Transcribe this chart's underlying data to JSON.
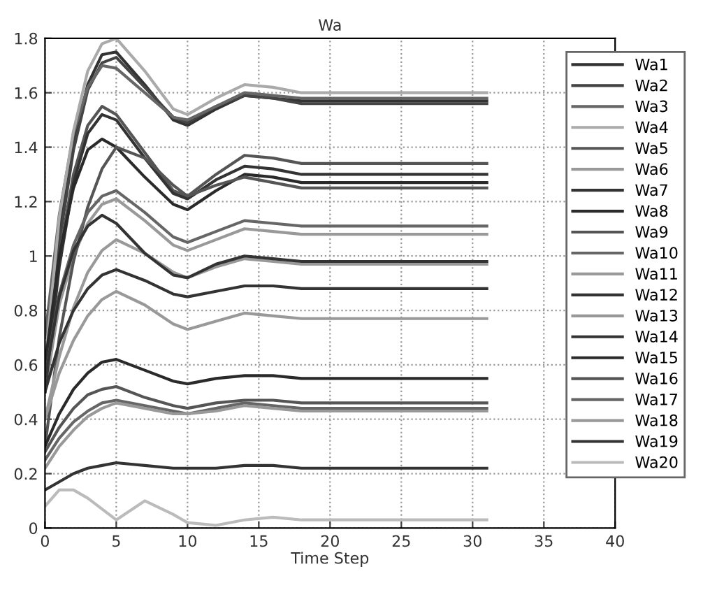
{
  "chart_data": {
    "type": "line",
    "title": "Wa",
    "xlabel": "Time Step",
    "x": [
      0,
      1,
      2,
      3,
      4,
      5,
      7,
      9,
      10,
      12,
      14,
      16,
      18,
      20,
      25,
      31
    ],
    "xlim": [
      0,
      40
    ],
    "xticks": [
      0,
      5,
      10,
      15,
      20,
      25,
      30,
      35,
      40
    ],
    "ylim": [
      0,
      1.8
    ],
    "yticks": [
      0,
      {
        "value": 0.2,
        "label": "0.2"
      },
      {
        "value": 0.4,
        "label": "0.4"
      },
      {
        "value": 0.6,
        "label": "0.6"
      },
      {
        "value": 0.8,
        "label": "0.8"
      },
      1,
      {
        "value": 1.2,
        "label": "1.2"
      },
      {
        "value": 1.4,
        "label": "1.4"
      },
      {
        "value": 1.6,
        "label": "1.6"
      },
      {
        "value": 1.8,
        "label": "1.8"
      }
    ],
    "grid": true,
    "legend": "right",
    "line_style": "solid",
    "marker": "none",
    "series": [
      {
        "name": "Wa1",
        "color": "#333333",
        "values": [
          0.55,
          1.09,
          1.41,
          1.63,
          1.74,
          1.75,
          1.63,
          1.5,
          1.48,
          1.54,
          1.59,
          1.58,
          1.57,
          1.57,
          1.57,
          1.57
        ]
      },
      {
        "name": "Wa2",
        "color": "#444444",
        "values": [
          0.5,
          1.05,
          1.39,
          1.61,
          1.71,
          1.73,
          1.62,
          1.51,
          1.49,
          1.55,
          1.59,
          1.58,
          1.56,
          1.56,
          1.56,
          1.56
        ]
      },
      {
        "name": "Wa3",
        "color": "#666666",
        "values": [
          0.7,
          1.15,
          1.45,
          1.62,
          1.7,
          1.69,
          1.6,
          1.51,
          1.5,
          1.55,
          1.6,
          1.59,
          1.58,
          1.58,
          1.58,
          1.58
        ]
      },
      {
        "name": "Wa4",
        "color": "#aaaaaa",
        "values": [
          0.6,
          1.14,
          1.46,
          1.68,
          1.78,
          1.8,
          1.68,
          1.54,
          1.52,
          1.58,
          1.63,
          1.62,
          1.6,
          1.6,
          1.6,
          1.6
        ]
      },
      {
        "name": "Wa5",
        "color": "#555555",
        "values": [
          0.55,
          1.0,
          1.3,
          1.48,
          1.55,
          1.52,
          1.38,
          1.24,
          1.22,
          1.3,
          1.37,
          1.36,
          1.34,
          1.34,
          1.34,
          1.34
        ]
      },
      {
        "name": "Wa6",
        "color": "#999999",
        "values": [
          0.5,
          0.82,
          1.0,
          1.12,
          1.19,
          1.21,
          1.13,
          1.04,
          1.02,
          1.06,
          1.1,
          1.09,
          1.08,
          1.08,
          1.08,
          1.08
        ]
      },
      {
        "name": "Wa7",
        "color": "#333333",
        "values": [
          0.5,
          0.96,
          1.27,
          1.45,
          1.52,
          1.5,
          1.36,
          1.23,
          1.21,
          1.28,
          1.33,
          1.32,
          1.3,
          1.3,
          1.3,
          1.3
        ]
      },
      {
        "name": "Wa8",
        "color": "#2a2a2a",
        "values": [
          0.6,
          1.0,
          1.25,
          1.39,
          1.43,
          1.4,
          1.29,
          1.19,
          1.17,
          1.24,
          1.3,
          1.29,
          1.27,
          1.27,
          1.27,
          1.27
        ]
      },
      {
        "name": "Wa9",
        "color": "#555555",
        "values": [
          0.3,
          0.7,
          0.98,
          1.18,
          1.32,
          1.4,
          1.36,
          1.26,
          1.22,
          1.26,
          1.29,
          1.27,
          1.25,
          1.25,
          1.25,
          1.25
        ]
      },
      {
        "name": "Wa10",
        "color": "#666666",
        "values": [
          0.55,
          0.86,
          1.04,
          1.16,
          1.22,
          1.24,
          1.16,
          1.07,
          1.05,
          1.09,
          1.13,
          1.12,
          1.11,
          1.11,
          1.11,
          1.11
        ]
      },
      {
        "name": "Wa11",
        "color": "#999999",
        "values": [
          0.4,
          0.63,
          0.81,
          0.94,
          1.02,
          1.06,
          1.01,
          0.94,
          0.92,
          0.96,
          0.99,
          0.98,
          0.97,
          0.97,
          0.97,
          0.97
        ]
      },
      {
        "name": "Wa12",
        "color": "#333333",
        "values": [
          0.55,
          0.85,
          1.02,
          1.11,
          1.15,
          1.12,
          1.01,
          0.93,
          0.92,
          0.97,
          1.0,
          0.99,
          0.98,
          0.98,
          0.98,
          0.98
        ]
      },
      {
        "name": "Wa13",
        "color": "#999999",
        "values": [
          0.4,
          0.57,
          0.69,
          0.78,
          0.84,
          0.87,
          0.82,
          0.75,
          0.73,
          0.76,
          0.79,
          0.78,
          0.77,
          0.77,
          0.77,
          0.77
        ]
      },
      {
        "name": "Wa14",
        "color": "#333333",
        "values": [
          0.5,
          0.68,
          0.8,
          0.88,
          0.93,
          0.95,
          0.91,
          0.86,
          0.85,
          0.87,
          0.89,
          0.89,
          0.88,
          0.88,
          0.88,
          0.88
        ]
      },
      {
        "name": "Wa15",
        "color": "#2a2a2a",
        "values": [
          0.3,
          0.42,
          0.51,
          0.57,
          0.61,
          0.62,
          0.58,
          0.54,
          0.53,
          0.55,
          0.56,
          0.56,
          0.55,
          0.55,
          0.55,
          0.55
        ]
      },
      {
        "name": "Wa16",
        "color": "#555555",
        "values": [
          0.28,
          0.37,
          0.44,
          0.49,
          0.51,
          0.52,
          0.48,
          0.45,
          0.44,
          0.46,
          0.47,
          0.47,
          0.46,
          0.46,
          0.46,
          0.46
        ]
      },
      {
        "name": "Wa17",
        "color": "#666666",
        "values": [
          0.25,
          0.33,
          0.39,
          0.43,
          0.46,
          0.47,
          0.45,
          0.43,
          0.42,
          0.44,
          0.46,
          0.45,
          0.44,
          0.44,
          0.44,
          0.44
        ]
      },
      {
        "name": "Wa18",
        "color": "#999999",
        "values": [
          0.22,
          0.3,
          0.36,
          0.41,
          0.44,
          0.46,
          0.44,
          0.42,
          0.42,
          0.43,
          0.45,
          0.44,
          0.43,
          0.43,
          0.43,
          0.43
        ]
      },
      {
        "name": "Wa19",
        "color": "#333333",
        "values": [
          0.14,
          0.17,
          0.2,
          0.22,
          0.23,
          0.24,
          0.23,
          0.22,
          0.22,
          0.22,
          0.23,
          0.23,
          0.22,
          0.22,
          0.22,
          0.22
        ]
      },
      {
        "name": "Wa20",
        "color": "#bbbbbb",
        "values": [
          0.08,
          0.14,
          0.14,
          0.11,
          0.07,
          0.03,
          0.1,
          0.05,
          0.02,
          0.01,
          0.03,
          0.04,
          0.03,
          0.03,
          0.03,
          0.03
        ]
      }
    ]
  }
}
